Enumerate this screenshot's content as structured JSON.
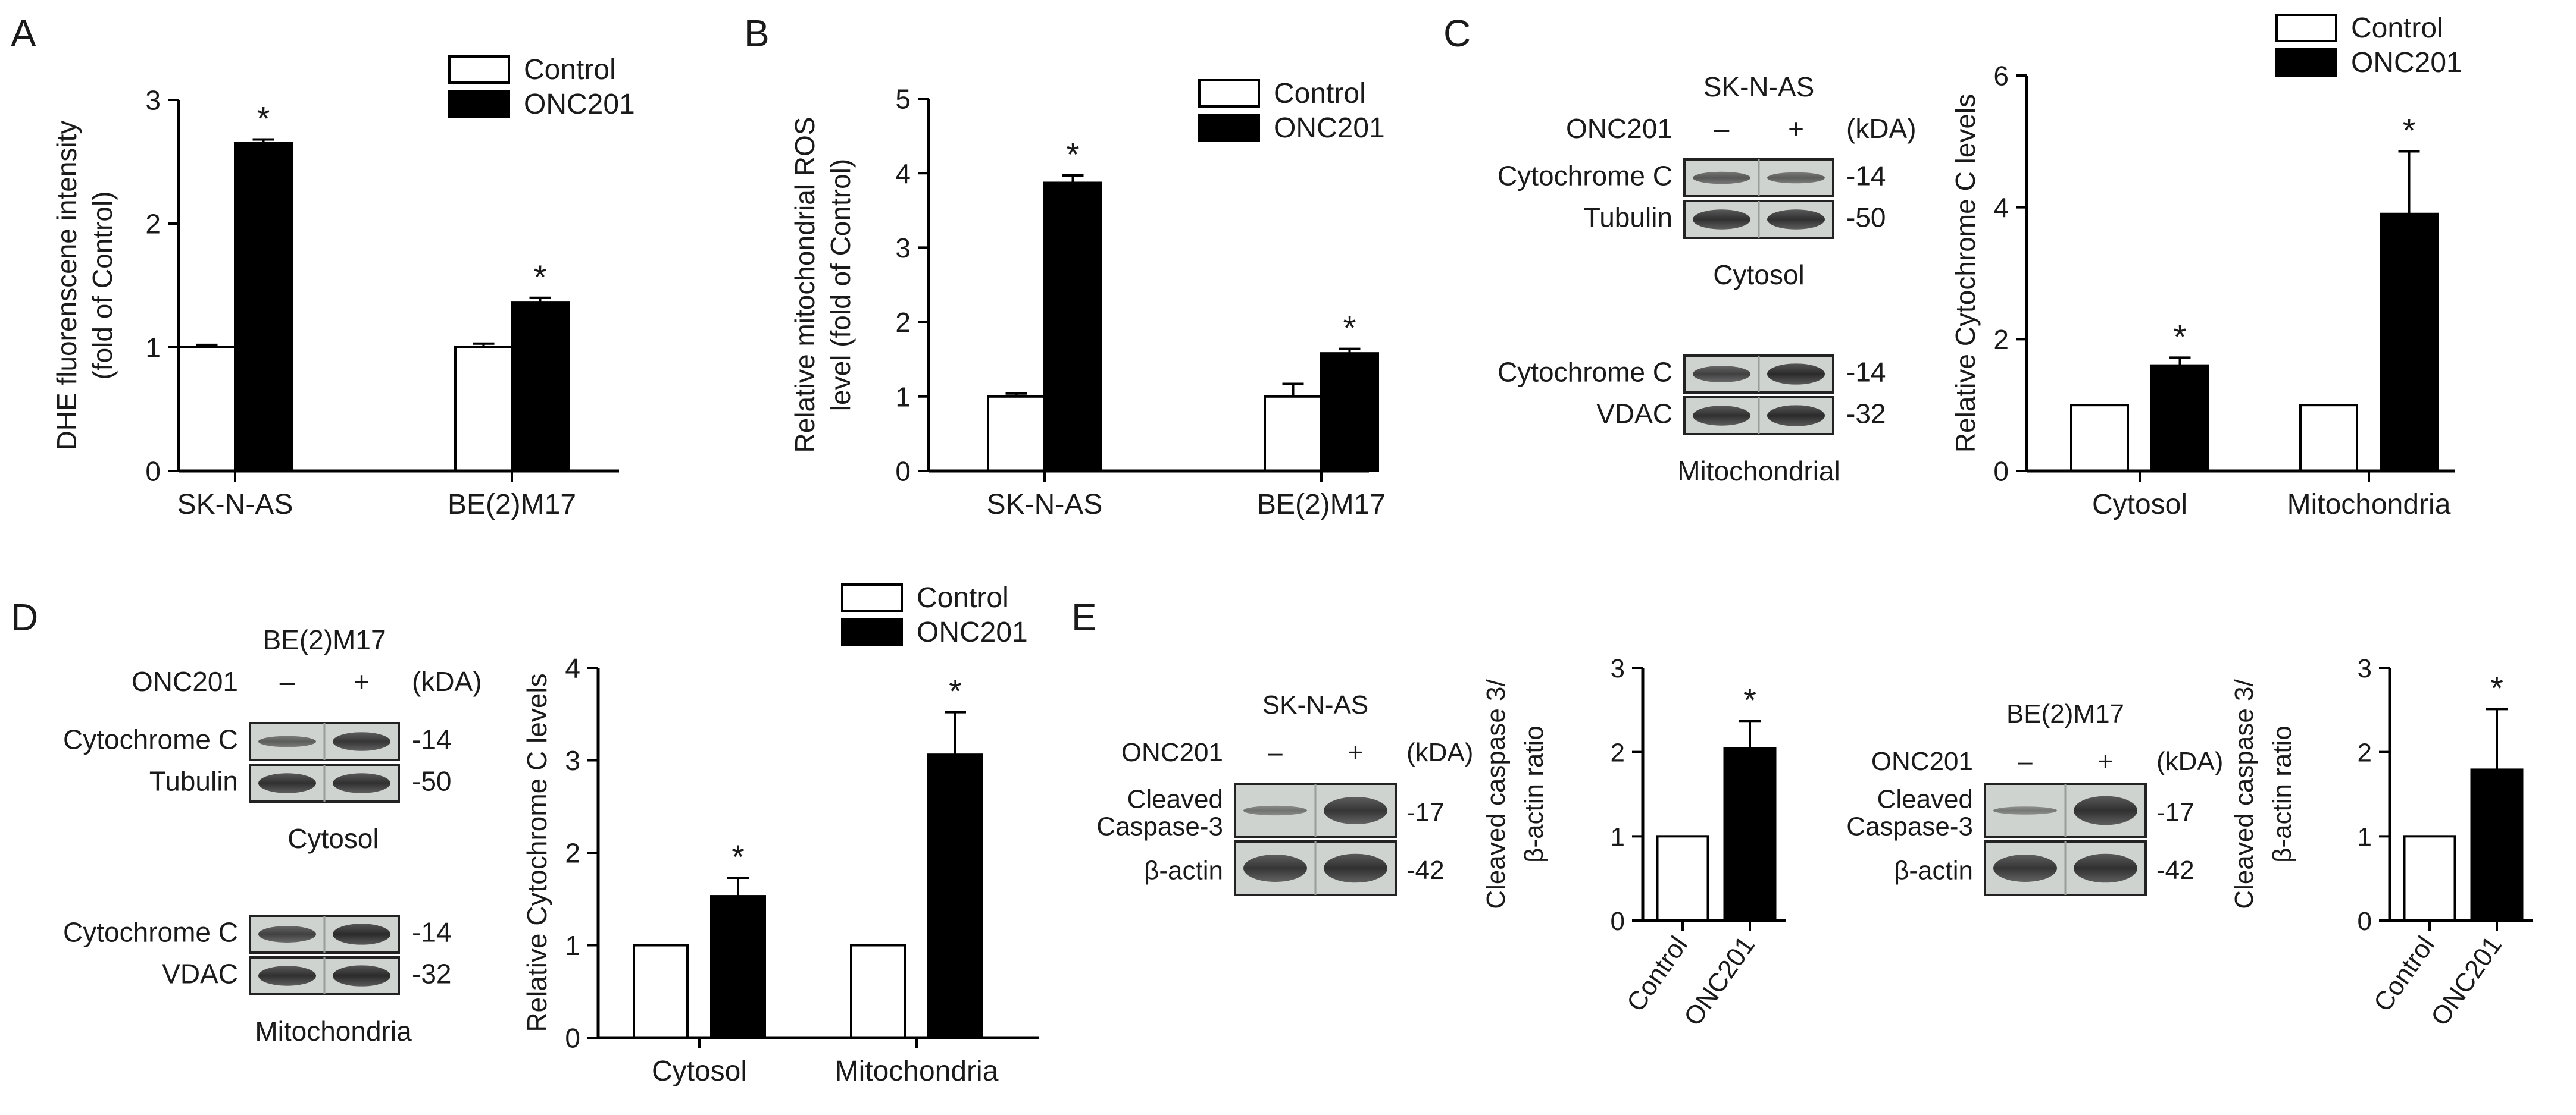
{
  "panels": {
    "A": "A",
    "B": "B",
    "C": "C",
    "D": "D",
    "E": "E"
  },
  "legend": {
    "control": "Control",
    "onc201": "ONC201"
  },
  "significance": "*",
  "blots": {
    "C": {
      "cell_line": "SK-N-AS",
      "treatment_label": "ONC201",
      "minus": "–",
      "plus": "+",
      "kda": "(kDA)",
      "groups": [
        {
          "caption": "Cytosol",
          "rows": [
            {
              "label": "Cytochrome C",
              "mw": "-14"
            },
            {
              "label": "Tubulin",
              "mw": "-50"
            }
          ]
        },
        {
          "caption": "Mitochondrial",
          "rows": [
            {
              "label": "Cytochrome C",
              "mw": "-14"
            },
            {
              "label": "VDAC",
              "mw": "-32"
            }
          ]
        }
      ]
    },
    "D": {
      "cell_line": "BE(2)M17",
      "treatment_label": "ONC201",
      "minus": "–",
      "plus": "+",
      "kda": "(kDA)",
      "groups": [
        {
          "caption": "Cytosol",
          "rows": [
            {
              "label": "Cytochrome C",
              "mw": "-14"
            },
            {
              "label": "Tubulin",
              "mw": "-50"
            }
          ]
        },
        {
          "caption": "Mitochondria",
          "rows": [
            {
              "label": "Cytochrome C",
              "mw": "-14"
            },
            {
              "label": "VDAC",
              "mw": "-32"
            }
          ]
        }
      ]
    },
    "E1": {
      "cell_line": "SK-N-AS",
      "treatment_label": "ONC201",
      "minus": "–",
      "plus": "+",
      "kda": "(kDA)",
      "rows": [
        {
          "label_lines": [
            "Cleaved",
            "Caspase-3"
          ],
          "mw": "-17"
        },
        {
          "label_lines": [
            "β-actin"
          ],
          "mw": "-42"
        }
      ]
    },
    "E2": {
      "cell_line": "BE(2)M17",
      "treatment_label": "ONC201",
      "minus": "–",
      "plus": "+",
      "kda": "(kDA)",
      "rows": [
        {
          "label_lines": [
            "Cleaved",
            "Caspase-3"
          ],
          "mw": "-17"
        },
        {
          "label_lines": [
            "β-actin"
          ],
          "mw": "-42"
        }
      ]
    }
  },
  "chart_data": [
    {
      "id": "A",
      "type": "bar",
      "ylabel_lines": [
        "DHE fluorenscene intensity",
        "(fold of Control)"
      ],
      "ylim": [
        0,
        3
      ],
      "yticks": [
        0,
        1,
        2,
        3
      ],
      "categories": [
        "SK-N-AS",
        "BE(2)M17"
      ],
      "series": [
        {
          "name": "Control",
          "values": [
            1.0,
            1.0
          ],
          "errors": [
            0.02,
            0.03
          ]
        },
        {
          "name": "ONC201",
          "values": [
            2.65,
            1.36
          ],
          "errors": [
            0.03,
            0.04
          ]
        }
      ],
      "significant": [
        false,
        true,
        false,
        true
      ],
      "legend": "top-right"
    },
    {
      "id": "B",
      "type": "bar",
      "ylabel_lines": [
        "Relative  mitochondrial  ROS",
        "level (fold of Control)"
      ],
      "ylim": [
        0,
        5
      ],
      "yticks": [
        0,
        1,
        2,
        3,
        4,
        5
      ],
      "categories": [
        "SK-N-AS",
        "BE(2)M17"
      ],
      "series": [
        {
          "name": "Control",
          "values": [
            1.0,
            1.0
          ],
          "errors": [
            0.04,
            0.17
          ]
        },
        {
          "name": "ONC201",
          "values": [
            3.87,
            1.58
          ],
          "errors": [
            0.1,
            0.06
          ]
        }
      ],
      "significant": [
        false,
        true,
        false,
        true
      ],
      "legend": "top-right"
    },
    {
      "id": "C",
      "type": "bar",
      "ylabel_lines": [
        "Relative Cytochrome C levels"
      ],
      "ylim": [
        0,
        6
      ],
      "yticks": [
        0,
        2,
        4,
        6
      ],
      "categories": [
        "Cytosol",
        "Mitochondria"
      ],
      "series": [
        {
          "name": "Control",
          "values": [
            1.0,
            1.0
          ],
          "errors": [
            0,
            0
          ]
        },
        {
          "name": "ONC201",
          "values": [
            1.6,
            3.9
          ],
          "errors": [
            0.12,
            0.95
          ]
        }
      ],
      "significant": [
        false,
        true,
        false,
        true
      ],
      "legend": "top-right"
    },
    {
      "id": "D",
      "type": "bar",
      "ylabel_lines": [
        "Relative Cytochrome C levels"
      ],
      "ylim": [
        0,
        4
      ],
      "yticks": [
        0,
        1,
        2,
        3,
        4
      ],
      "categories": [
        "Cytosol",
        "Mitochondria"
      ],
      "series": [
        {
          "name": "Control",
          "values": [
            1.0,
            1.0
          ],
          "errors": [
            0,
            0
          ]
        },
        {
          "name": "ONC201",
          "values": [
            1.53,
            3.06
          ],
          "errors": [
            0.2,
            0.46
          ]
        }
      ],
      "significant": [
        false,
        true,
        false,
        true
      ],
      "legend": "top-right"
    },
    {
      "id": "E1",
      "type": "bar",
      "ylabel_lines": [
        "Cleaved caspase 3/",
        "β-actin ratio"
      ],
      "ylim": [
        0,
        3
      ],
      "yticks": [
        0,
        1,
        2,
        3
      ],
      "categories": [
        "Control",
        "ONC201"
      ],
      "values": [
        1.0,
        2.04
      ],
      "errors": [
        0,
        0.33
      ],
      "significant": [
        false,
        true
      ]
    },
    {
      "id": "E2",
      "type": "bar",
      "ylabel_lines": [
        "Cleaved caspase 3/",
        "β-actin ratio"
      ],
      "ylim": [
        0,
        3
      ],
      "yticks": [
        0,
        1,
        2,
        3
      ],
      "categories": [
        "Control",
        "ONC201"
      ],
      "values": [
        1.0,
        1.79
      ],
      "errors": [
        0,
        0.72
      ],
      "significant": [
        false,
        true
      ]
    }
  ]
}
